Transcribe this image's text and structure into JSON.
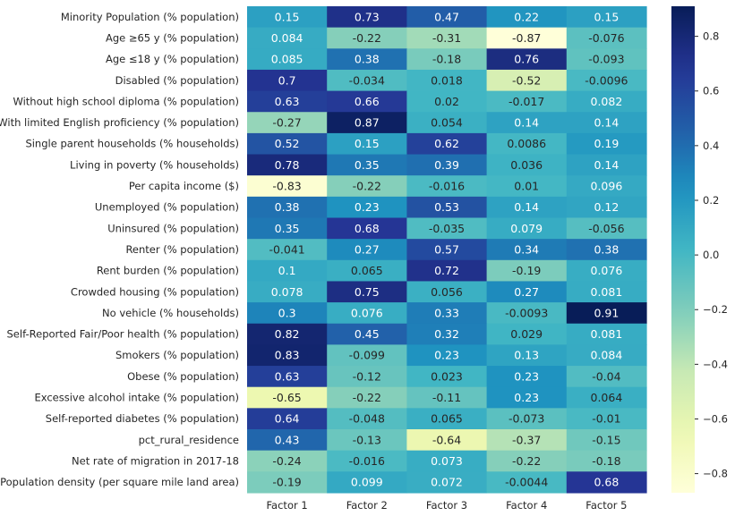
{
  "chart_data": {
    "type": "heatmap",
    "columns": [
      "Factor 1",
      "Factor 2",
      "Factor 3",
      "Factor 4",
      "Factor 5"
    ],
    "rows": [
      "Minority Population (% population)",
      "Age ≥65 y (% population)",
      "Age ≤18 y (% population)",
      "Disabled (% population)",
      "Without high school diploma (% population)",
      "With limited English proficiency (% population)",
      "Single parent households (% households)",
      "Living in poverty (% households)",
      "Per capita income ($)",
      "Unemployed (% population)",
      "Uninsured (% population)",
      "Renter (% population)",
      "Rent burden (% population)",
      "Crowded housing (% population)",
      "No vehicle (% households)",
      "Self-Reported Fair/Poor health (% population)",
      "Smokers (% population)",
      "Obese (% population)",
      "Excessive alcohol intake (% population)",
      "Self-reported diabetes (% population)",
      "pct_rural_residence",
      "Net rate of migration in 2017-18",
      "Population density (per square mile land area)"
    ],
    "values": [
      [
        0.15,
        0.73,
        0.47,
        0.22,
        0.15
      ],
      [
        0.084,
        -0.22,
        -0.31,
        -0.87,
        -0.076
      ],
      [
        0.085,
        0.38,
        -0.18,
        0.76,
        -0.093
      ],
      [
        0.7,
        -0.034,
        0.018,
        -0.52,
        -0.0096
      ],
      [
        0.63,
        0.66,
        0.02,
        -0.017,
        0.082
      ],
      [
        -0.27,
        0.87,
        0.054,
        0.14,
        0.14
      ],
      [
        0.52,
        0.15,
        0.62,
        0.0086,
        0.19
      ],
      [
        0.78,
        0.35,
        0.39,
        0.036,
        0.14
      ],
      [
        -0.83,
        -0.22,
        -0.016,
        0.01,
        0.096
      ],
      [
        0.38,
        0.23,
        0.53,
        0.14,
        0.12
      ],
      [
        0.35,
        0.68,
        -0.035,
        0.079,
        -0.056
      ],
      [
        -0.041,
        0.27,
        0.57,
        0.34,
        0.38
      ],
      [
        0.1,
        0.065,
        0.72,
        -0.19,
        0.076
      ],
      [
        0.078,
        0.75,
        0.056,
        0.27,
        0.081
      ],
      [
        0.3,
        0.076,
        0.33,
        -0.0093,
        0.91
      ],
      [
        0.82,
        0.45,
        0.32,
        0.029,
        0.081
      ],
      [
        0.83,
        -0.099,
        0.23,
        0.13,
        0.084
      ],
      [
        0.63,
        -0.12,
        0.023,
        0.23,
        -0.04
      ],
      [
        -0.65,
        -0.22,
        -0.11,
        0.23,
        0.064
      ],
      [
        0.64,
        -0.048,
        0.065,
        -0.073,
        -0.01
      ],
      [
        0.43,
        -0.13,
        -0.64,
        -0.37,
        -0.15
      ],
      [
        -0.24,
        -0.016,
        0.073,
        -0.22,
        -0.18
      ],
      [
        -0.19,
        0.099,
        0.072,
        -0.0044,
        0.68
      ]
    ],
    "colormap": "YlGnBu",
    "colorbar": {
      "min": -0.87,
      "max": 0.91,
      "ticks": [
        0.8,
        0.6,
        0.4,
        0.2,
        0.0,
        -0.2,
        -0.4,
        -0.6,
        -0.8
      ],
      "tick_labels": [
        "0.8",
        "0.6",
        "0.4",
        "0.2",
        "0.0",
        "−0.2",
        "−0.4",
        "−0.6",
        "−0.8"
      ]
    },
    "annotated": true,
    "grid": false,
    "title": "",
    "xlabel": "",
    "ylabel": ""
  },
  "colors": {
    "background": "#ffffff",
    "text": "#262626",
    "light_annotation": "#ffffff",
    "dark_annotation": "#262626"
  }
}
